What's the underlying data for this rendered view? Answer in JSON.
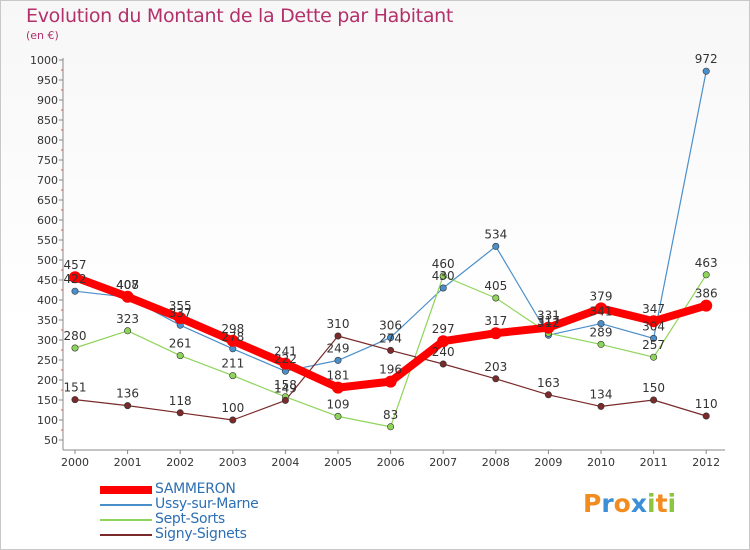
{
  "title": "Evolution du Montant de la Dette par Habitant",
  "subtitle": "(en €)",
  "logo": {
    "letters": [
      "P",
      "r",
      "o",
      "x",
      "i",
      "t",
      "i"
    ],
    "colors": [
      "#f28c1e",
      "#3b8fd6",
      "#f28c1e",
      "#3b8fd6",
      "#8cc63f",
      "#f28c1e",
      "#8cc63f"
    ]
  },
  "chart_data": {
    "type": "line",
    "title": "Evolution du Montant de la Dette par Habitant",
    "ylabel": "(en €)",
    "xlabel": "",
    "categories": [
      "2000",
      "2001",
      "2002",
      "2003",
      "2004",
      "2005",
      "2006",
      "2007",
      "2008",
      "2009",
      "2010",
      "2011",
      "2012"
    ],
    "ylim": [
      50,
      1000
    ],
    "yticks": [
      50,
      100,
      150,
      200,
      250,
      300,
      350,
      400,
      450,
      500,
      550,
      600,
      650,
      700,
      750,
      800,
      850,
      900,
      950,
      1000
    ],
    "grid": false,
    "legend_position": "bottom-left",
    "series": [
      {
        "name": "Ussy-sur-Marne",
        "color": "#4b8fca",
        "values": [
          422,
          407,
          337,
          278,
          222,
          249,
          306,
          430,
          534,
          312,
          341,
          304,
          972
        ],
        "labels": [
          "422",
          "407",
          "337",
          "278",
          "222",
          "249",
          "306",
          "430",
          "534",
          "312",
          "341",
          "304",
          "972"
        ]
      },
      {
        "name": "Sept-Sorts",
        "color": "#8fd45a",
        "values": [
          280,
          323,
          261,
          211,
          158,
          109,
          83,
          460,
          405,
          317,
          289,
          257,
          463
        ],
        "labels": [
          "280",
          "323",
          "261",
          "211",
          "158",
          "109",
          "83",
          "460",
          "405",
          "317",
          "289",
          "257",
          "463"
        ]
      },
      {
        "name": "Signy-Signets",
        "color": "#7a2a2a",
        "values": [
          151,
          136,
          118,
          100,
          149,
          310,
          274,
          240,
          203,
          163,
          134,
          150,
          110
        ],
        "labels": [
          "151",
          "136",
          "118",
          "100",
          "149",
          "310",
          "274",
          "240",
          "203",
          "163",
          "134",
          "150",
          "110"
        ]
      },
      {
        "name": "SAMMERON",
        "color": "#ff0000",
        "values": [
          457,
          408,
          355,
          298,
          241,
          181,
          196,
          297,
          317,
          331,
          379,
          347,
          386
        ],
        "labels": [
          "457",
          "408",
          "355",
          "298",
          "241",
          "181",
          "196",
          "297",
          "317",
          "331",
          "379",
          "347",
          "386"
        ]
      }
    ]
  },
  "legend": [
    {
      "label": "SAMMERON",
      "color": "#ff0000"
    },
    {
      "label": "Ussy-sur-Marne",
      "color": "#4b8fca"
    },
    {
      "label": "Sept-Sorts",
      "color": "#8fd45a"
    },
    {
      "label": "Signy-Signets",
      "color": "#7a2a2a"
    }
  ]
}
